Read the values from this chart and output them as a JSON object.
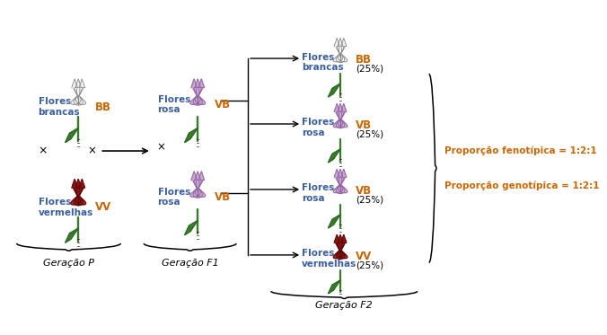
{
  "background_color": "#ffffff",
  "gen_p_label": "Geração P",
  "gen_f1_label": "Geração F1",
  "gen_f2_label": "Geração F2",
  "flores_brancas_label": "Flores\nbrancas",
  "flores_rosa_label": "Flores\nrosa",
  "flores_vermelhas_label": "Flores\nvermelhas",
  "label_color_blue": "#3A5FA0",
  "label_color_orange": "#CC6600",
  "genotype_BB": "BB",
  "genotype_VB": "VB",
  "genotype_VV": "VV",
  "percent_25": "(25%)",
  "prop_fenotipica": "Proporção fenotípica = 1:2:1",
  "prop_genotipica": "Proporção genotípica = 1:2:1",
  "prop_color": "#CC6600",
  "cross_symbol": "×",
  "white_petal": "#f0f0f0",
  "pink_petal": "#C8A8D0",
  "red_petal": "#8B1515",
  "green_stem": "#3A7A2A",
  "green_leaf": "#3A7A2A"
}
